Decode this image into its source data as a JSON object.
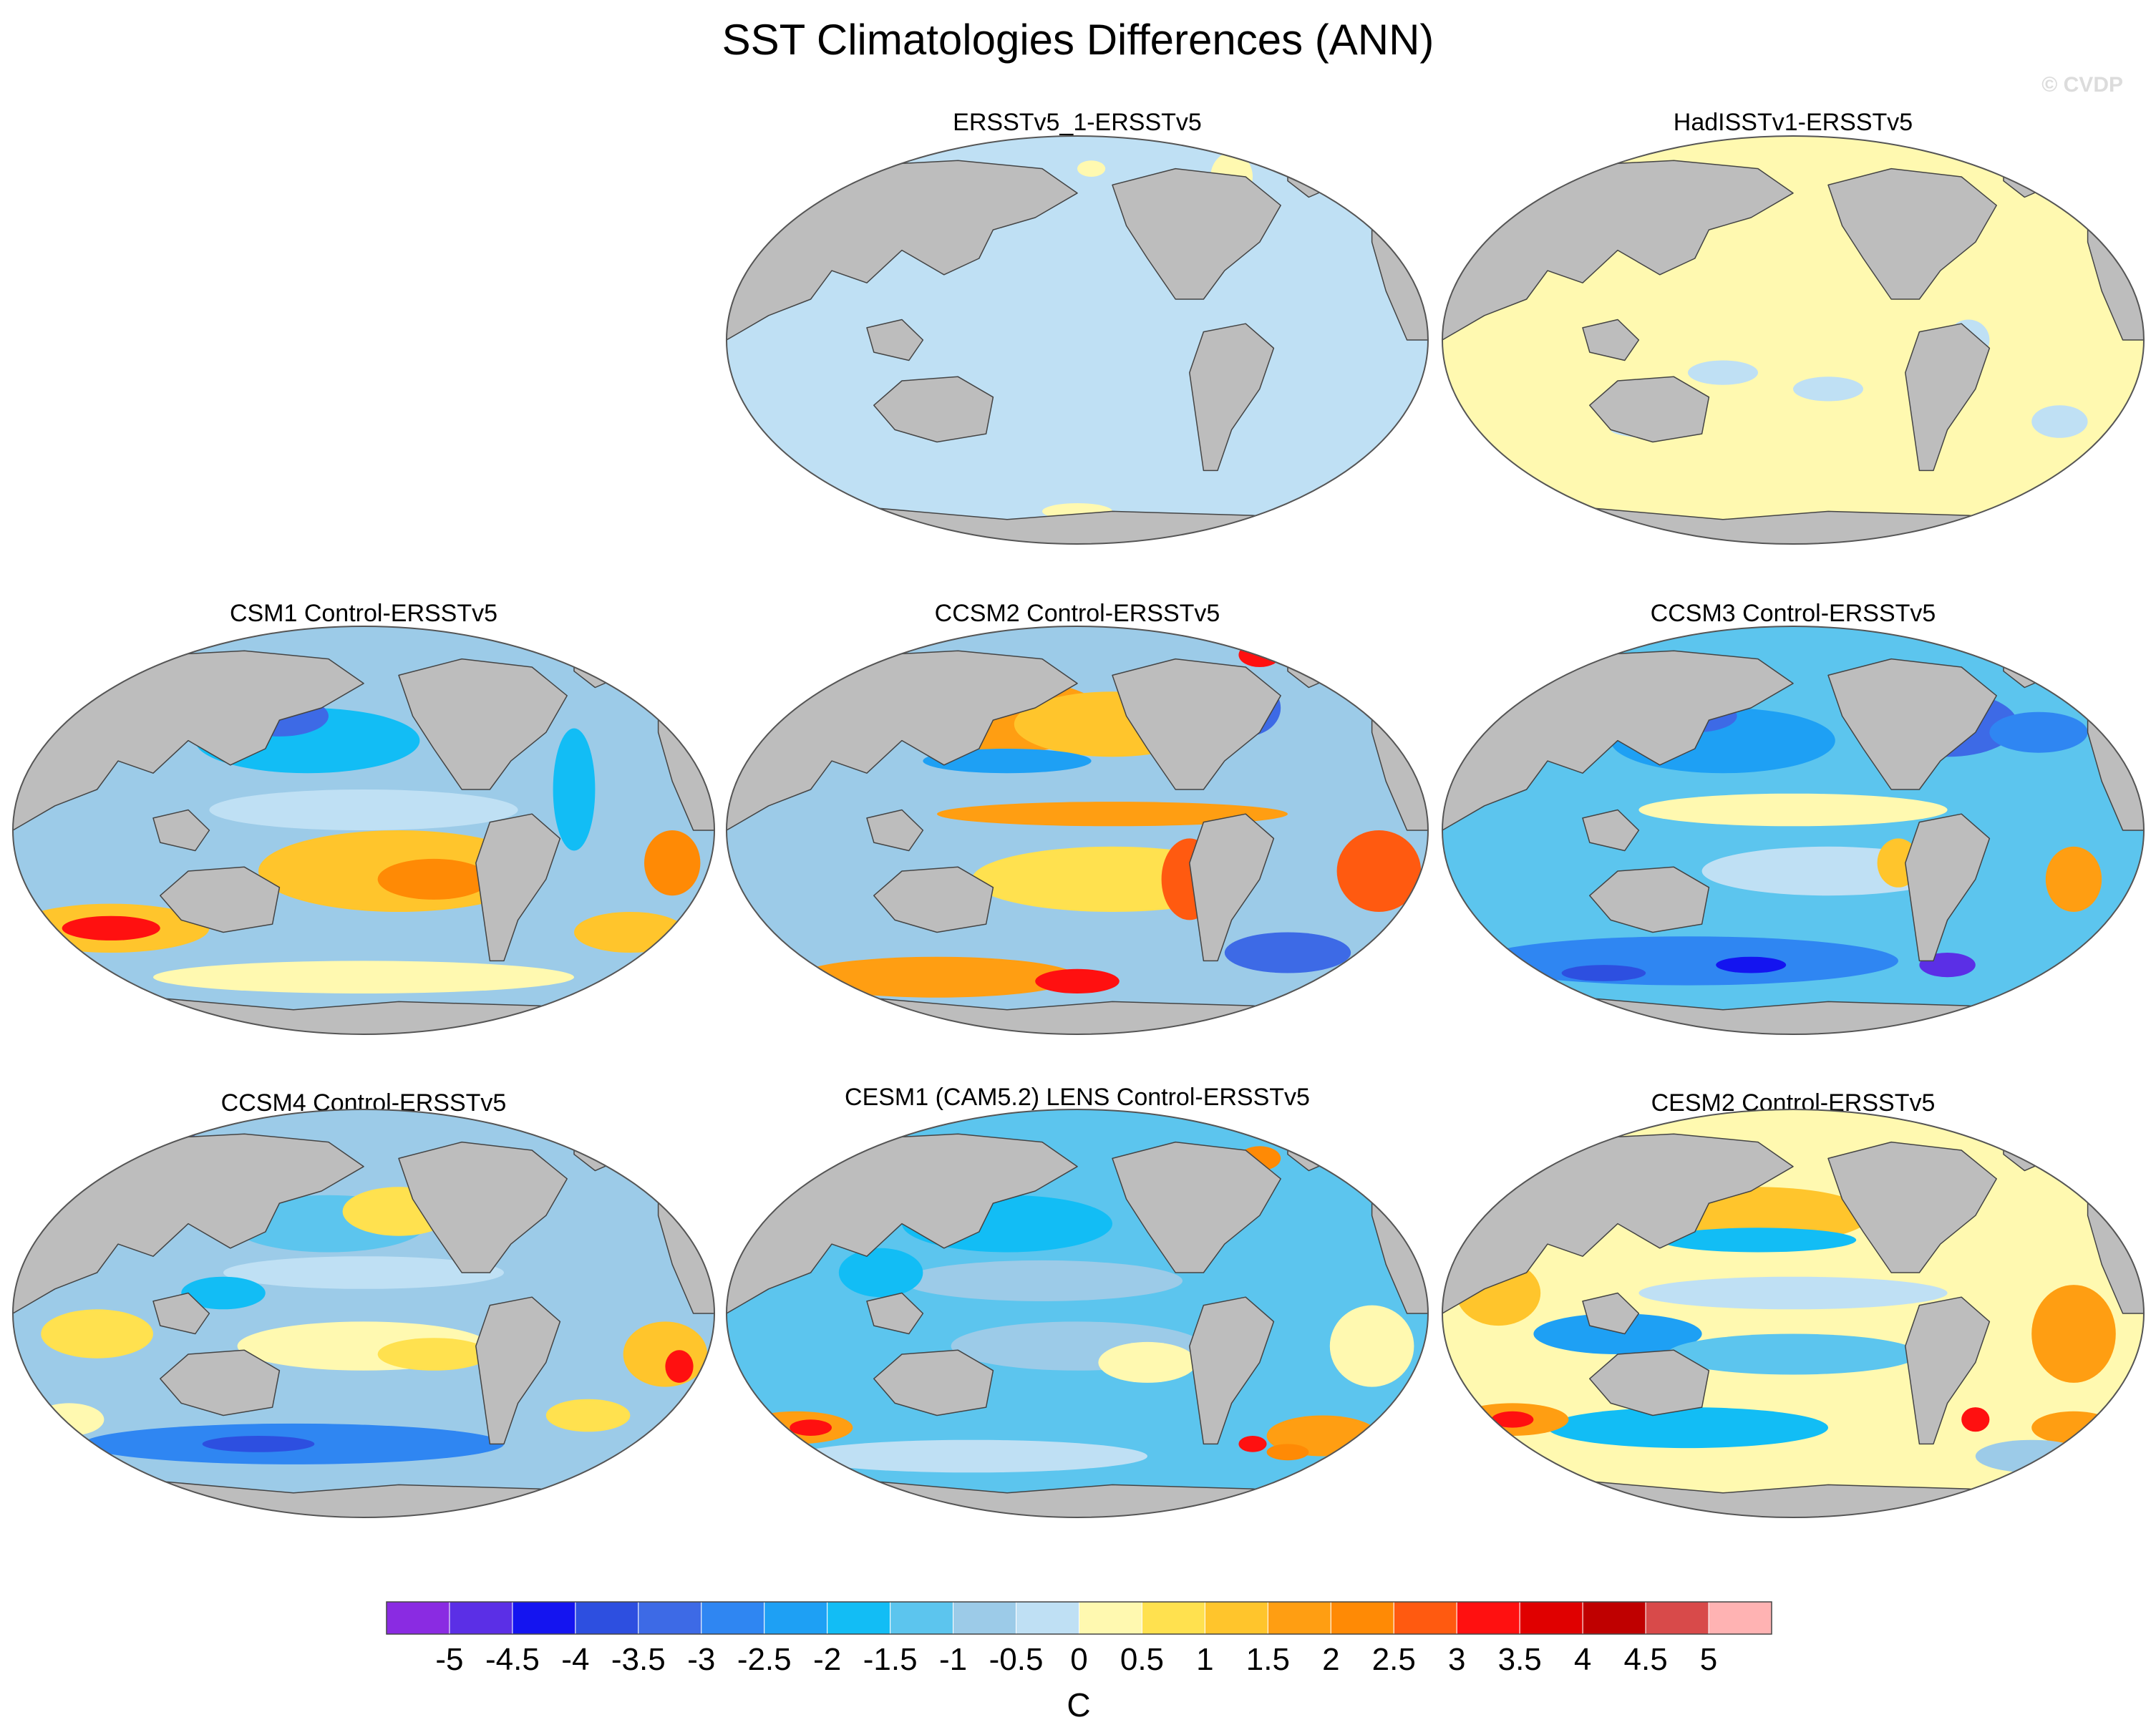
{
  "title": "SST Climatologies Differences (ANN)",
  "watermark": "© CVDP",
  "colors": {
    "land": "#bdbdbd",
    "coast": "#444444",
    "ocean_outline": "#555555"
  },
  "panels": [
    {
      "title": "ERSSTv5_1-ERSSTv5",
      "pattern": "uniform_neg"
    },
    {
      "title": "HadISSTv1-ERSSTv5",
      "pattern": "uniform_pos"
    },
    {
      "title": "CSM1 Control-ERSSTv5",
      "pattern": "csm1"
    },
    {
      "title": "CCSM2 Control-ERSSTv5",
      "pattern": "ccsm2"
    },
    {
      "title": "CCSM3 Control-ERSSTv5",
      "pattern": "ccsm3"
    },
    {
      "title": "CCSM4 Control-ERSSTv5",
      "pattern": "ccsm4"
    },
    {
      "title": "CESM1 (CAM5.2) LENS Control-ERSSTv5",
      "pattern": "cesm1"
    },
    {
      "title": "CESM2 Control-ERSSTv5",
      "pattern": "cesm2"
    }
  ],
  "colorbar": {
    "label": "C",
    "tick_labels": [
      "-5",
      "-4.5",
      "-4",
      "-3.5",
      "-3",
      "-2.5",
      "-2",
      "-1.5",
      "-1",
      "-0.5",
      "0",
      "0.5",
      "1",
      "1.5",
      "2",
      "2.5",
      "3",
      "3.5",
      "4",
      "4.5",
      "5"
    ],
    "colors": [
      "#8a2be2",
      "#5b2fe6",
      "#1414f0",
      "#2d4fe0",
      "#3d6ae6",
      "#2f86f2",
      "#1ea0f4",
      "#12bdf5",
      "#5cc5ee",
      "#9ccbe8",
      "#bfe0f4",
      "#fff9b0",
      "#ffe14f",
      "#ffc52c",
      "#ff9e12",
      "#ff8a05",
      "#ff5a10",
      "#ff1010",
      "#e00000",
      "#bf0000",
      "#d84a4a",
      "#ffb3b3"
    ]
  }
}
